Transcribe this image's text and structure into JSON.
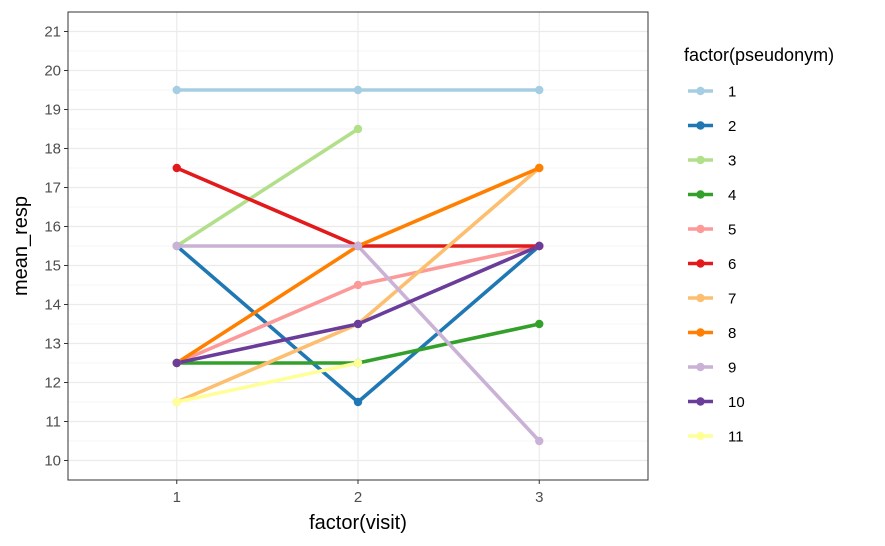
{
  "chart_data": {
    "type": "line",
    "xlabel": "factor(visit)",
    "ylabel": "mean_resp",
    "x_categories": [
      "1",
      "2",
      "3"
    ],
    "ylim": [
      9.5,
      21.5
    ],
    "y_ticks": [
      10,
      11,
      12,
      13,
      14,
      15,
      16,
      17,
      18,
      19,
      20,
      21
    ],
    "grid": true,
    "legend": {
      "title": "factor(pseudonym)",
      "position": "right"
    },
    "series": [
      {
        "name": "1",
        "color": "#A6CEE3",
        "values": [
          19.5,
          19.5,
          19.5
        ]
      },
      {
        "name": "2",
        "color": "#1F78B4",
        "values": [
          15.5,
          11.5,
          15.5
        ]
      },
      {
        "name": "3",
        "color": "#B2DF8A",
        "values": [
          15.5,
          18.5,
          null
        ]
      },
      {
        "name": "4",
        "color": "#33A02C",
        "values": [
          12.5,
          12.5,
          13.5
        ]
      },
      {
        "name": "5",
        "color": "#FB9A99",
        "values": [
          12.5,
          14.5,
          15.5
        ]
      },
      {
        "name": "6",
        "color": "#E31A1C",
        "values": [
          17.5,
          15.5,
          15.5
        ]
      },
      {
        "name": "7",
        "color": "#FDBF6F",
        "values": [
          11.5,
          13.5,
          17.5
        ]
      },
      {
        "name": "8",
        "color": "#FF7F00",
        "values": [
          12.5,
          15.5,
          17.5
        ]
      },
      {
        "name": "9",
        "color": "#CAB2D6",
        "values": [
          15.5,
          15.5,
          10.5
        ]
      },
      {
        "name": "10",
        "color": "#6A3D9A",
        "values": [
          12.5,
          13.5,
          15.5
        ]
      },
      {
        "name": "11",
        "color": "#FFFF99",
        "values": [
          11.5,
          12.5,
          null
        ]
      }
    ]
  }
}
